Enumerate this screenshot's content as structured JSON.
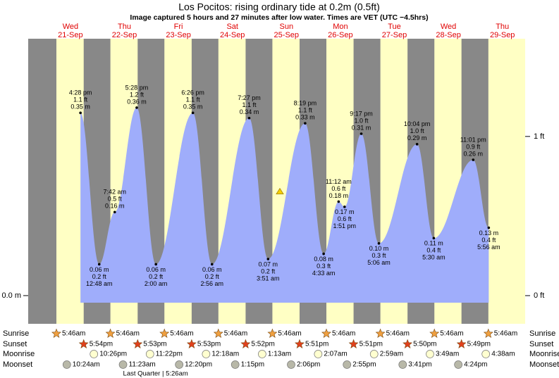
{
  "chart_data": {
    "type": "area",
    "title": "Los Pocitos: rising  ordinary tide at 0.2m (0.5ft)",
    "subtitle": "Image captured 5 hours and 27 minutes after low water. Times are VET (UTC −4.5hrs)",
    "ylim": [
      -0.054,
      0.492
    ],
    "yticks": [
      {
        "value": 0,
        "label": "0.0 m"
      }
    ],
    "y2lim": [
      -0.177,
      1.614
    ],
    "y2ticks": [
      {
        "value": 0,
        "label": "0 ft"
      },
      {
        "value": 1,
        "label": "1 ft"
      }
    ],
    "current_level": 0.2,
    "row_labels": [
      "Sunrise",
      "Sunset",
      "Moonrise",
      "Moonset"
    ],
    "days": [
      {
        "weekday": "Wed",
        "date": "21-Sep",
        "sunrise": "5:46am",
        "sunset": "5:54pm",
        "moonrise": "10:26pm",
        "moonset": "10:24am",
        "tides": [
          {
            "time": "4:28 pm",
            "feet": "1.1 ft",
            "m": 0.35,
            "m_label": "0.35 m"
          }
        ]
      },
      {
        "weekday": "Thu",
        "date": "22-Sep",
        "sunrise": "5:46am",
        "sunset": "5:53pm",
        "moonrise": "11:22pm",
        "moonset": "11:23am",
        "moon_phase": "Last Quarter | 5:26am",
        "tides": [
          {
            "time": "12:48 am",
            "feet": "0.2 ft",
            "m": 0.06,
            "m_label": "0.06 m"
          },
          {
            "time": "7:42 am",
            "feet": "0.5 ft",
            "m": 0.16,
            "m_label": "0.16 m"
          },
          {
            "time": "5:28 pm",
            "feet": "1.2 ft",
            "m": 0.36,
            "m_label": "0.36 m"
          }
        ]
      },
      {
        "weekday": "Fri",
        "date": "23-Sep",
        "sunrise": "5:46am",
        "sunset": "5:53pm",
        "moonset": "12:20pm",
        "tides": [
          {
            "time": "2:00 am",
            "feet": "0.2 ft",
            "m": 0.06,
            "m_label": "0.06 m"
          },
          {
            "time": "6:26 pm",
            "feet": "1.1 ft",
            "m": 0.35,
            "m_label": "0.35 m"
          }
        ]
      },
      {
        "weekday": "Sat",
        "date": "24-Sep",
        "sunrise": "5:46am",
        "sunset": "5:52pm",
        "moonrise": "12:18am",
        "moonset": "1:15pm",
        "tides": [
          {
            "time": "2:56 am",
            "feet": "0.2 ft",
            "m": 0.06,
            "m_label": "0.06 m"
          },
          {
            "time": "7:27 pm",
            "feet": "1.1 ft",
            "m": 0.34,
            "m_label": "0.34 m"
          }
        ]
      },
      {
        "weekday": "Sun",
        "date": "25-Sep",
        "sunrise": "5:46am",
        "sunset": "5:51pm",
        "moonrise": "1:13am",
        "moonset": "2:06pm",
        "tides": [
          {
            "time": "3:51 am",
            "feet": "0.2 ft",
            "m": 0.07,
            "m_label": "0.07 m"
          },
          {
            "time": "8:19 pm",
            "feet": "1.1 ft",
            "m": 0.33,
            "m_label": "0.33 m"
          }
        ]
      },
      {
        "weekday": "Mon",
        "date": "26-Sep",
        "sunrise": "5:46am",
        "sunset": "5:51pm",
        "moonrise": "2:07am",
        "moonset": "2:55pm",
        "tides": [
          {
            "time": "4:33 am",
            "feet": "0.3 ft",
            "m": 0.08,
            "m_label": "0.08 m"
          },
          {
            "time": "11:12 am",
            "feet": "0.6 ft",
            "m": 0.18,
            "m_label": "0.18 m"
          },
          {
            "time": "1:51 pm",
            "feet": "0.6 ft",
            "m": 0.17,
            "m_label": "0.17 m"
          },
          {
            "time": "9:17 pm",
            "feet": "1.0 ft",
            "m": 0.31,
            "m_label": "0.31 m"
          }
        ]
      },
      {
        "weekday": "Tue",
        "date": "27-Sep",
        "sunrise": "5:46am",
        "sunset": "5:50pm",
        "moonrise": "2:59am",
        "moonset": "3:41pm",
        "tides": [
          {
            "time": "5:06 am",
            "feet": "0.3 ft",
            "m": 0.1,
            "m_label": "0.10 m"
          },
          {
            "time": "10:04 pm",
            "feet": "1.0 ft",
            "m": 0.29,
            "m_label": "0.29 m"
          }
        ]
      },
      {
        "weekday": "Wed",
        "date": "28-Sep",
        "sunrise": "5:46am",
        "sunset": "5:49pm",
        "moonrise": "3:49am",
        "moonset": "4:24pm",
        "tides": [
          {
            "time": "5:30 am",
            "feet": "0.4 ft",
            "m": 0.11,
            "m_label": "0.11 m"
          },
          {
            "time": "11:01 pm",
            "feet": "0.9 ft",
            "m": 0.26,
            "m_label": "0.26 m"
          }
        ]
      },
      {
        "weekday": "Thu",
        "date": "29-Sep",
        "sunrise": "5:46am",
        "moonrise": "4:38am",
        "tides": [
          {
            "time": "5:56 am",
            "feet": "0.4 ft",
            "m": 0.13,
            "m_label": "0.13 m"
          }
        ]
      }
    ]
  }
}
